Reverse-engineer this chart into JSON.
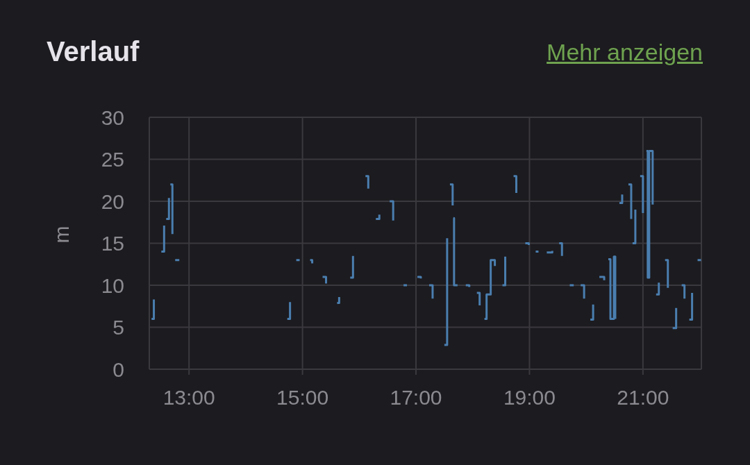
{
  "chart_data": {
    "type": "step",
    "title": "Verlauf",
    "annotations": [
      "Mehr anzeigen"
    ],
    "ylabel": "m",
    "xlim": [
      12.3,
      22.03
    ],
    "xticks": [
      {
        "value": 13,
        "label": "13:00"
      },
      {
        "value": 15,
        "label": "15:00"
      },
      {
        "value": 17,
        "label": "17:00"
      },
      {
        "value": 19,
        "label": "19:00"
      },
      {
        "value": 21,
        "label": "21:00"
      }
    ],
    "ylim": [
      0,
      30
    ],
    "yticks": [
      0,
      5,
      10,
      15,
      20,
      25,
      30
    ],
    "grid": true,
    "legend": false,
    "marker": "none",
    "line_style": "solid",
    "series": [
      {
        "color": "#4a7eaf",
        "x": [
          12.34,
          12.38,
          null,
          12.512,
          12.561,
          null,
          12.598,
          12.646,
          null,
          12.671,
          12.707,
          null,
          12.756,
          12.829,
          null,
          14.732,
          14.78,
          null,
          14.89,
          14.95,
          null,
          15.134,
          15.171,
          null,
          15.354,
          15.415,
          null,
          15.61,
          15.646,
          null,
          15.841,
          15.89,
          null,
          16.11,
          16.159,
          null,
          16.293,
          16.354,
          null,
          16.537,
          16.598,
          null,
          16.78,
          16.841,
          null,
          17.024,
          17.085,
          null,
          17.232,
          17.293,
          null,
          17.5,
          17.549,
          null,
          17.598,
          17.646,
          null,
          17.659,
          17.671,
          17.732,
          null,
          17.878,
          17.939,
          null,
          18.073,
          18.122,
          null,
          18.207,
          18.244,
          18.317,
          18.39,
          null,
          18.524,
          18.573,
          null,
          18.72,
          18.768,
          null,
          18.927,
          18.988,
          null,
          19.11,
          19.159,
          null,
          19.305,
          19.402,
          null,
          19.524,
          19.573,
          null,
          19.71,
          19.78,
          null,
          19.902,
          19.963,
          null,
          20.073,
          20.122,
          null,
          20.232,
          20.317,
          null,
          20.39,
          20.427,
          20.488,
          20.512,
          null,
          20.585,
          20.634,
          null,
          20.744,
          20.793,
          null,
          20.817,
          20.866,
          null,
          20.951,
          21.0,
          null,
          21.061,
          21.085,
          21.11,
          21.171,
          null,
          21.232,
          21.28,
          null,
          21.39,
          21.439,
          null,
          21.524,
          21.585,
          null,
          21.683,
          21.732,
          null,
          21.817,
          21.866,
          null,
          21.963,
          22.024
        ],
        "values": [
          6,
          8.3,
          null,
          14,
          17.1,
          null,
          17.9,
          20.4,
          null,
          22,
          16.1,
          null,
          13,
          13,
          null,
          6,
          8,
          null,
          13,
          13,
          null,
          13,
          12.6,
          null,
          11,
          10.2,
          null,
          7.9,
          8.6,
          null,
          10.9,
          13.5,
          null,
          23,
          21.5,
          null,
          17.9,
          18.4,
          null,
          20,
          17.7,
          null,
          10,
          10,
          null,
          11,
          10.8,
          null,
          10,
          8.4,
          null,
          2.9,
          15.6,
          null,
          22,
          19.5,
          null,
          18,
          10,
          10,
          null,
          10,
          9.8,
          null,
          9.1,
          7.6,
          null,
          6,
          8.9,
          13,
          12.3,
          null,
          10,
          13.4,
          null,
          23,
          21,
          null,
          15,
          14.8,
          null,
          14,
          14,
          null,
          13.9,
          14.1,
          null,
          15,
          13.5,
          null,
          10,
          10,
          null,
          10,
          8.4,
          null,
          5.9,
          7.7,
          null,
          11,
          10.6,
          null,
          13.1,
          6,
          13.4,
          6,
          null,
          19.8,
          20.8,
          null,
          22,
          17.9,
          null,
          15,
          19,
          null,
          23,
          18.6,
          null,
          26,
          10.9,
          26,
          19.6,
          null,
          8.9,
          10.3,
          null,
          13,
          9.7,
          null,
          4.9,
          7.3,
          null,
          10,
          8.4,
          null,
          5.9,
          9.1,
          null,
          13,
          13
        ]
      }
    ]
  }
}
